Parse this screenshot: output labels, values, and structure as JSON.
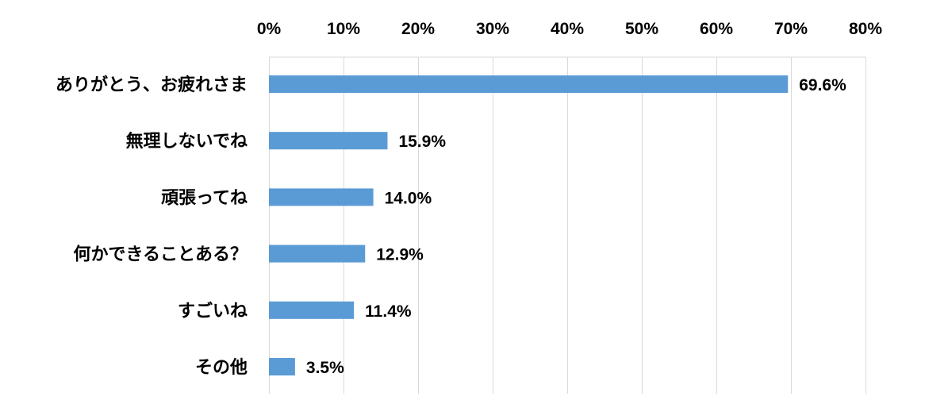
{
  "chart_data": {
    "type": "bar",
    "orientation": "horizontal",
    "categories": [
      "ありがとう、お疲れさま",
      "無理しないでね",
      "頑張ってね",
      "何かできることある？",
      "すごいね",
      "その他"
    ],
    "values": [
      69.6,
      15.9,
      14.0,
      12.9,
      11.4,
      3.5
    ],
    "value_labels": [
      "69.6%",
      "15.9%",
      "14.0%",
      "12.9%",
      "11.4%",
      "3.5%"
    ],
    "xlim": [
      0,
      80
    ],
    "x_ticks": [
      0,
      10,
      20,
      30,
      40,
      50,
      60,
      70,
      80
    ],
    "x_tick_labels": [
      "0%",
      "10%",
      "20%",
      "30%",
      "40%",
      "50%",
      "60%",
      "70%",
      "80%"
    ],
    "x_axis_position": "top",
    "grid": true,
    "legend": false,
    "title": "",
    "xlabel": "",
    "ylabel": "",
    "colors": {
      "bar": "#5b9bd5",
      "grid": "#d9d9d9",
      "text": "#000000"
    }
  }
}
